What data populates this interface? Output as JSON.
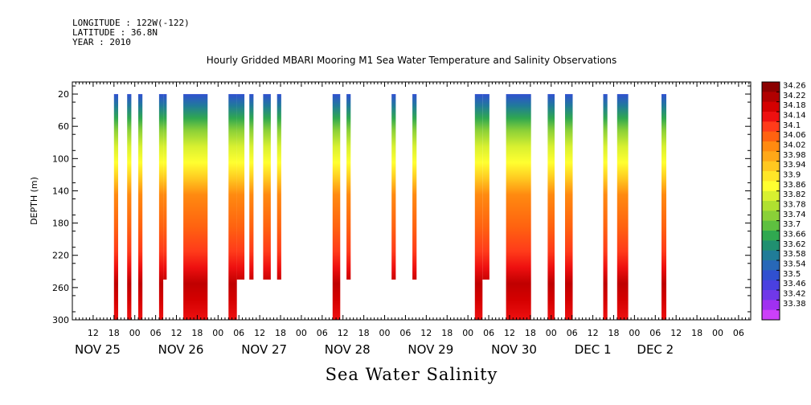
{
  "header": {
    "longitude": "LONGITUDE : 122W(-122)",
    "latitude": "LATITUDE : 36.8N",
    "year": "YEAR : 2010"
  },
  "chart_data": {
    "type": "heatmap",
    "title": "Hourly Gridded MBARI Mooring M1 Sea Water Temperature and Salinity Observations",
    "subtitle": "Sea Water Salinity",
    "ylabel": "DEPTH (m)",
    "xlabel": "",
    "x_units": "hours since 2010-11-25 00:00",
    "xlim": [
      6,
      61.5
    ],
    "ylim": [
      300,
      5
    ],
    "y_ticks": [
      20,
      60,
      100,
      140,
      180,
      220,
      260,
      300
    ],
    "x_hour_ticks": [
      {
        "h": 12,
        "label": "12"
      },
      {
        "h": 18,
        "label": "18"
      },
      {
        "h": 24,
        "label": "00"
      },
      {
        "h": 30,
        "label": "06"
      },
      {
        "h": 36,
        "label": "12"
      },
      {
        "h": 42,
        "label": "18"
      },
      {
        "h": 48,
        "label": "00"
      },
      {
        "h": 54,
        "label": "06"
      },
      {
        "h": 60,
        "label": "12"
      },
      {
        "h": 66,
        "label": "18"
      },
      {
        "h": 72,
        "label": "00"
      },
      {
        "h": 78,
        "label": "06"
      },
      {
        "h": 84,
        "label": "12"
      },
      {
        "h": 90,
        "label": "18"
      },
      {
        "h": 96,
        "label": "00"
      },
      {
        "h": 102,
        "label": "06"
      },
      {
        "h": 108,
        "label": "12"
      },
      {
        "h": 114,
        "label": "18"
      },
      {
        "h": 120,
        "label": "00"
      },
      {
        "h": 126,
        "label": "06"
      },
      {
        "h": 132,
        "label": "12"
      },
      {
        "h": 138,
        "label": "18"
      },
      {
        "h": 144,
        "label": "00"
      },
      {
        "h": 150,
        "label": "06"
      },
      {
        "h": 156,
        "label": "12"
      },
      {
        "h": 162,
        "label": "18"
      },
      {
        "h": 168,
        "label": "00"
      },
      {
        "h": 174,
        "label": "06"
      },
      {
        "h": 180,
        "label": "12"
      },
      {
        "h": 186,
        "label": "18"
      },
      {
        "h": 192,
        "label": "00"
      },
      {
        "h": 198,
        "label": "06"
      }
    ],
    "day_labels": [
      {
        "h": 6,
        "label": "NOV 25"
      },
      {
        "h": 30,
        "label": "NOV 26"
      },
      {
        "h": 54,
        "label": "NOV 27"
      },
      {
        "h": 78,
        "label": "NOV 28"
      },
      {
        "h": 102,
        "label": "NOV 29"
      },
      {
        "h": 126,
        "label": "NOV 30"
      },
      {
        "h": 150,
        "label": "DEC  1"
      },
      {
        "h": 168,
        "label": "DEC  2"
      }
    ],
    "x_range_hours": [
      6,
      201.5
    ],
    "colorbar_levels": [
      "34.26",
      "34.22",
      "34.18",
      "34.14",
      "34.1",
      "34.06",
      "34.02",
      "33.98",
      "33.94",
      "33.9",
      "33.86",
      "33.82",
      "33.78",
      "33.74",
      "33.7",
      "33.66",
      "33.62",
      "33.58",
      "33.54",
      "33.5",
      "33.46",
      "33.42",
      "33.38"
    ],
    "colorbar_colors": [
      "#8b0000",
      "#b00000",
      "#d40000",
      "#ee1010",
      "#ff3b1a",
      "#ff6210",
      "#ff8a10",
      "#ffa818",
      "#ffc820",
      "#ffe628",
      "#ffff30",
      "#d8f030",
      "#b0e030",
      "#8ad038",
      "#5ec040",
      "#30a850",
      "#209070",
      "#207c98",
      "#2868b8",
      "#3050d0",
      "#4a40e0",
      "#7038e8",
      "#a030f0",
      "#cc40f8"
    ],
    "segments": [
      {
        "start": 18.0,
        "end": 19.2,
        "bottom": 300
      },
      {
        "start": 21.8,
        "end": 23.0,
        "bottom": 300
      },
      {
        "start": 25.0,
        "end": 26.2,
        "bottom": 300
      },
      {
        "start": 31.0,
        "end": 32.2,
        "bottom": 300
      },
      {
        "start": 32.2,
        "end": 33.2,
        "bottom": 250
      },
      {
        "start": 38.0,
        "end": 45.0,
        "bottom": 300
      },
      {
        "start": 51.0,
        "end": 53.4,
        "bottom": 300
      },
      {
        "start": 53.4,
        "end": 55.6,
        "bottom": 250
      },
      {
        "start": 57.0,
        "end": 58.2,
        "bottom": 250
      },
      {
        "start": 61.0,
        "end": 63.2,
        "bottom": 250
      },
      {
        "start": 65.0,
        "end": 66.2,
        "bottom": 250
      },
      {
        "start": 81.0,
        "end": 83.2,
        "bottom": 300
      },
      {
        "start": 85.0,
        "end": 86.2,
        "bottom": 250
      },
      {
        "start": 98.0,
        "end": 99.2,
        "bottom": 250
      },
      {
        "start": 104.0,
        "end": 105.2,
        "bottom": 250
      },
      {
        "start": 122.0,
        "end": 124.2,
        "bottom": 300
      },
      {
        "start": 124.2,
        "end": 126.2,
        "bottom": 250
      },
      {
        "start": 131.0,
        "end": 138.2,
        "bottom": 300
      },
      {
        "start": 143.0,
        "end": 145.0,
        "bottom": 300
      },
      {
        "start": 148.0,
        "end": 150.2,
        "bottom": 300
      },
      {
        "start": 159.0,
        "end": 160.2,
        "bottom": 300
      },
      {
        "start": 163.0,
        "end": 166.2,
        "bottom": 300
      },
      {
        "start": 175.8,
        "end": 177.2,
        "bottom": 300
      }
    ]
  }
}
